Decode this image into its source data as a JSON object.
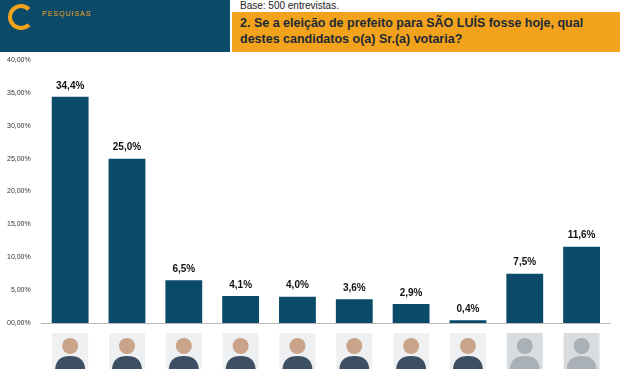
{
  "chart_data": {
    "type": "bar",
    "title": "2. Se a eleição de prefeito para SÃO LUÍS fosse hoje, qual destes candidatos o(a) Sr.(a) votaria?",
    "subtitle": "Base: 500 entrevistas.",
    "annotations": [
      "PESQUISAS"
    ],
    "categories": [
      null,
      null,
      null,
      null,
      null,
      null,
      null,
      null,
      null,
      null
    ],
    "values": [
      34.4,
      25.0,
      6.5,
      4.1,
      4.0,
      3.6,
      2.9,
      0.4,
      7.5,
      11.6
    ],
    "value_labels": [
      "34,4%",
      "25,0%",
      "6,5%",
      "4,1%",
      "4,0%",
      "3,6%",
      "2,9%",
      "0,4%",
      "7,5%",
      "11,6%"
    ],
    "color": "#0b4a68",
    "ylim": [
      0,
      40
    ],
    "yticks": [
      {
        "value": 0,
        "label": "00,00%"
      },
      {
        "value": 5,
        "label": "5,00%"
      },
      {
        "value": 10,
        "label": "10,00%"
      },
      {
        "value": 15,
        "label": "15,00%"
      },
      {
        "value": 20,
        "label": "20,00%"
      },
      {
        "value": 25,
        "label": "25,00%"
      },
      {
        "value": 30,
        "label": "30,00%"
      },
      {
        "value": 35,
        "label": "35,00%"
      },
      {
        "value": 40,
        "label": "40,00%"
      }
    ],
    "grid": false,
    "data_labels": true
  }
}
